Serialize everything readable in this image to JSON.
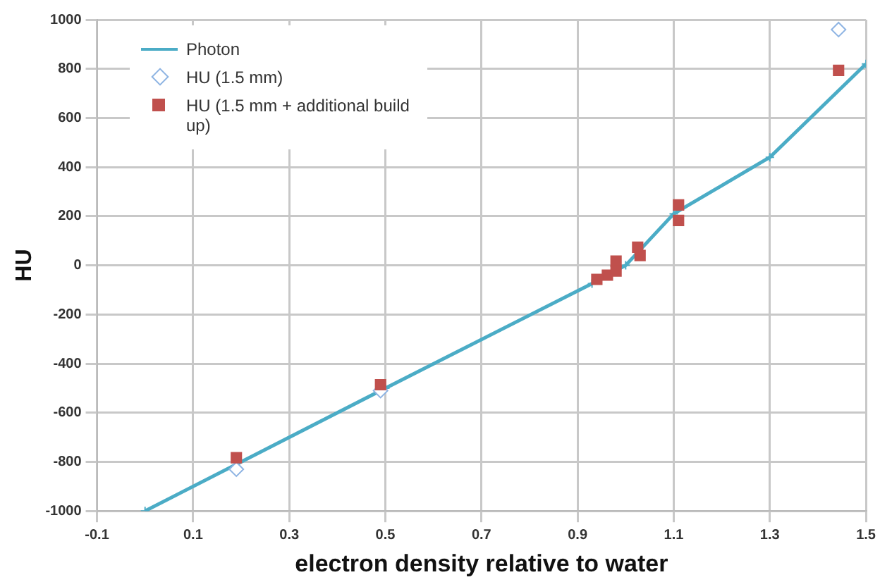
{
  "chart_data": {
    "type": "line",
    "xlabel": "electron density relative to water",
    "ylabel": "HU",
    "xlim": [
      -0.1,
      1.5
    ],
    "xticks": [
      -0.1,
      0.1,
      0.3,
      0.5,
      0.7,
      0.9,
      1.1,
      1.3,
      1.5
    ],
    "ylim": [
      -1000,
      1000
    ],
    "yticks": [
      -1000,
      -800,
      -600,
      -400,
      -200,
      0,
      200,
      400,
      600,
      800,
      1000
    ],
    "grid": true,
    "legend": "top left",
    "series": [
      {
        "name": "Photon",
        "color": "#4bacc6",
        "marker": "cross",
        "line_style": "solid",
        "x": [
          0,
          0.5,
          0.93,
          1.0,
          1.1,
          1.3,
          1.5
        ],
        "values": [
          -1000,
          -500,
          -74,
          0,
          210,
          440,
          820
        ]
      },
      {
        "name": "HU (1.5 mm)",
        "type": "scatter",
        "color": "#8eb4e3",
        "marker": "diamond",
        "x": [
          0.19,
          0.49,
          1.443
        ],
        "values": [
          -830,
          -510,
          960
        ]
      },
      {
        "name": "HU (1.5 mm + additional build up)",
        "type": "scatter",
        "color": "#c0504d",
        "marker": "square",
        "x": [
          0.19,
          0.49,
          0.94,
          0.962,
          0.98,
          0.98,
          1.025,
          1.03,
          1.11,
          1.11,
          1.443
        ],
        "values": [
          -783,
          -486,
          -57,
          -40,
          -23,
          17,
          74,
          40,
          246,
          183,
          794
        ]
      }
    ]
  }
}
